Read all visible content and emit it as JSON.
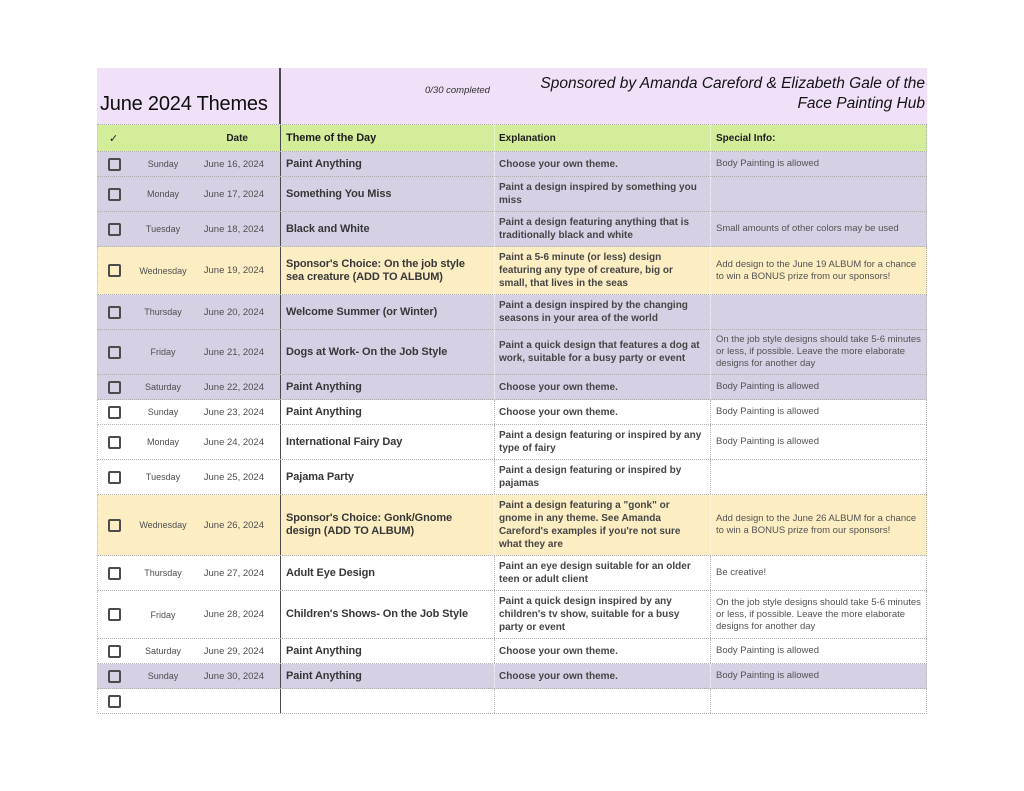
{
  "colors": {
    "band": "#F0E0F8",
    "header_row": "#D4ED9B",
    "lavender": "#D6D0E5",
    "yellow": "#FCEDC2",
    "white": "#FFFFFF",
    "grid_line": "#4A4A4A"
  },
  "header": {
    "title": "June 2024 Themes",
    "completed": "0/30 completed",
    "sponsor": "Sponsored by Amanda Careford & Elizabeth Gale of the Face Painting Hub"
  },
  "columns": {
    "check": "✓",
    "date": "Date",
    "theme": "Theme of the Day",
    "explanation": "Explanation",
    "special": "Special Info:"
  },
  "rows": [
    {
      "day": "Sunday",
      "date": "June 16, 2024",
      "theme": "Paint Anything",
      "explanation": "Choose your own theme.",
      "special": "Body Painting is allowed",
      "bg": "lavender"
    },
    {
      "day": "Monday",
      "date": "June 17, 2024",
      "theme": "Something You Miss",
      "explanation": "Paint a design inspired by something you miss",
      "special": "",
      "bg": "lavender"
    },
    {
      "day": "Tuesday",
      "date": "June 18, 2024",
      "theme": "Black and White",
      "explanation": "Paint a design featuring anything that is traditionally black and white",
      "special": "Small amounts of other colors may be used",
      "bg": "lavender"
    },
    {
      "day": "Wednesday",
      "date": "June 19, 2024",
      "theme": "Sponsor's Choice: On the job style sea creature (ADD TO ALBUM)",
      "explanation": "Paint a 5-6 minute (or less) design featuring any type of creature, big or small, that lives in the seas",
      "special": "Add design to the June 19 ALBUM for a chance to win a BONUS prize from our sponsors!",
      "bg": "yellow"
    },
    {
      "day": "Thursday",
      "date": "June 20, 2024",
      "theme": "Welcome Summer (or Winter)",
      "explanation": "Paint a design inspired by the changing seasons in your area of the world",
      "special": "",
      "bg": "lavender"
    },
    {
      "day": "Friday",
      "date": "June 21, 2024",
      "theme": "Dogs at Work- On the Job Style",
      "explanation": "Paint a quick design that features a dog at work, suitable for a busy party or event",
      "special": "On the job style designs should take 5-6 minutes or less, if possible. Leave the more elaborate designs for another day",
      "bg": "lavender"
    },
    {
      "day": "Saturday",
      "date": "June 22, 2024",
      "theme": "Paint Anything",
      "explanation": "Choose your own theme.",
      "special": "Body Painting is allowed",
      "bg": "lavender"
    },
    {
      "day": "Sunday",
      "date": "June 23, 2024",
      "theme": "Paint Anything",
      "explanation": "Choose your own theme.",
      "special": "Body Painting is allowed",
      "bg": "white"
    },
    {
      "day": "Monday",
      "date": "June 24, 2024",
      "theme": "International Fairy Day",
      "explanation": "Paint a design featuring or inspired by any type of fairy",
      "special": "Body Painting is allowed",
      "bg": "white"
    },
    {
      "day": "Tuesday",
      "date": "June 25, 2024",
      "theme": "Pajama Party",
      "explanation": "Paint a design featuring or inspired by pajamas",
      "special": "",
      "bg": "white"
    },
    {
      "day": "Wednesday",
      "date": "June 26, 2024",
      "theme": "Sponsor's Choice: Gonk/Gnome design (ADD TO ALBUM)",
      "explanation": "Paint a design featuring a \"gonk\" or gnome in any theme. See Amanda Careford's examples if you're not sure what they are",
      "special": "Add design to the June 26 ALBUM for a chance to win a BONUS prize from our sponsors!",
      "bg": "yellow"
    },
    {
      "day": "Thursday",
      "date": "June 27, 2024",
      "theme": "Adult Eye Design",
      "explanation": "Paint an eye design suitable for an older teen or adult client",
      "special": "Be creative!",
      "bg": "white"
    },
    {
      "day": "Friday",
      "date": "June 28, 2024",
      "theme": "Children's Shows- On the Job Style",
      "explanation": "Paint a quick design inspired by any children's tv show, suitable for a busy party or event",
      "special": "On the job style designs should take 5-6 minutes or less, if possible. Leave the more elaborate designs for another day",
      "bg": "white"
    },
    {
      "day": "Saturday",
      "date": "June 29, 2024",
      "theme": "Paint Anything",
      "explanation": "Choose your own theme.",
      "special": "Body Painting is allowed",
      "bg": "white"
    },
    {
      "day": "Sunday",
      "date": "June 30, 2024",
      "theme": "Paint Anything",
      "explanation": "Choose your own theme.",
      "special": "Body Painting is allowed",
      "bg": "lavender"
    },
    {
      "day": "",
      "date": "",
      "theme": "",
      "explanation": "",
      "special": "",
      "bg": "white"
    }
  ]
}
